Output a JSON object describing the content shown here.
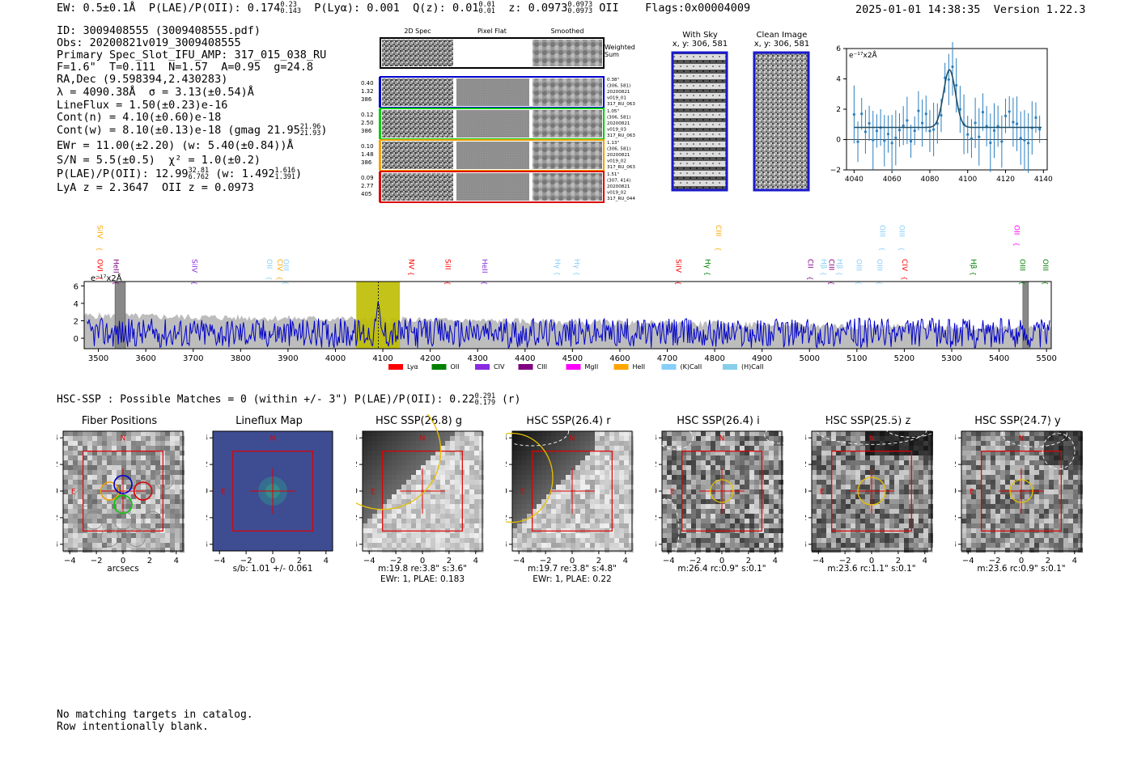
{
  "header": {
    "ew": "EW: 0.5±0.1Å",
    "plae_label": "P(LAE)/P(OII): 0.174",
    "plae_hi": "0.23",
    "plae_lo": "0.143",
    "plya": "P(Lyα): 0.001",
    "qz_label": "Q(z): 0.01",
    "qz_hi": "0.01",
    "qz_lo": "0.01",
    "z_label": "z: 0.0973",
    "z_hi": "0.0973",
    "z_lo": "0.0973",
    "z_line": "OII",
    "flags": "Flags:0x00004009",
    "timestamp": "2025-01-01 14:38:35",
    "version": "Version 1.22.3"
  },
  "info": {
    "id": "ID: 3009408555 (3009408555.pdf)",
    "obs": "Obs: 20200821v019_3009408555",
    "primary": "Primary Spec_Slot_IFU_AMP: 317_015_038_RU",
    "fparams": "F=1.6\"  T=0.111  N=1.57  A=0.95  g=24.8",
    "radec": "RA,Dec (9.598394,2.430283)",
    "lambda": "λ = 4090.38Å  σ = 3.13(±0.54)Å",
    "lineflux": "LineFlux = 1.50(±0.23)e-16",
    "contn": "Cont(n) = 4.10(±0.60)e-18",
    "contw": "Cont(w) = 8.10(±0.13)e-18 (gmag 21.95",
    "contw_hi": "21.96",
    "contw_lo": "21.93",
    "contw_end": ")",
    "ewr": "EWr = 11.00(±2.20) (w: 5.40(±0.84))Å",
    "sn": "S/N = 5.5(±0.5)  χ² = 1.0(±0.2)",
    "plae": "P(LAE)/P(OII): 12.99",
    "plae_hi": "32.81",
    "plae_lo": "6.762",
    "plae_w": "(w: 1.492",
    "plae_w_hi": "1.616",
    "plae_w_lo": "1.391",
    "plae_end": ")",
    "lyaz": "LyA z = 2.3647  OII z = 0.0973"
  },
  "cutouts": {
    "col_headers": [
      "2D Spec",
      "Pixel Flat",
      "Smoothed"
    ],
    "weighted_sum": "Weighted Sum",
    "rows": [
      {
        "left": [
          "0.40",
          "1.32",
          "386"
        ],
        "right": [
          "0.38\"",
          "(306, 581)",
          "20200821",
          "v019_01",
          "317_RU_063"
        ],
        "color": "#0000cc"
      },
      {
        "left": [
          "0.12",
          "2.50",
          "386"
        ],
        "right": [
          "1.05\"",
          "(306, 581)",
          "20200821",
          "v019_03",
          "317_RU_063"
        ],
        "color": "#00cc00"
      },
      {
        "left": [
          "0.10",
          "1.48",
          "386"
        ],
        "right": [
          "1.13\"",
          "(306, 581)",
          "20200821",
          "v019_02",
          "317_RU_063"
        ],
        "color": "#f2a000"
      },
      {
        "left": [
          "0.09",
          "2.77",
          "405"
        ],
        "right": [
          "1.51\"",
          "(307, 414)",
          "20200821",
          "v019_02",
          "317_RU_044"
        ],
        "color": "#dd0000"
      }
    ]
  },
  "sky": {
    "with_sky_title": "With Sky",
    "with_sky_xy": "x, y: 306, 581",
    "clean_title": "Clean Image",
    "clean_xy": "x, y: 306, 581"
  },
  "fit_chart": {
    "type": "scatter",
    "ylabel": "e⁻¹⁷x2Å",
    "xlim": [
      4036,
      4142
    ],
    "ylim": [
      -2,
      6
    ],
    "xticks": [
      "4040",
      "4060",
      "4080",
      "4100",
      "4120",
      "4140"
    ],
    "yticks": [
      "−2",
      "0",
      "2",
      "4",
      "6"
    ],
    "fit": {
      "center": 4090.38,
      "sigma": 3.13,
      "amp": 3.8,
      "baseline": 0.8
    }
  },
  "chart_data": {
    "type": "line",
    "title": "",
    "ylabel": "e⁻¹⁷x2Å",
    "xlim": [
      3470,
      5510
    ],
    "ylim": [
      -1.2,
      6.5
    ],
    "xticks": [
      "3500",
      "3600",
      "3700",
      "3800",
      "3900",
      "4000",
      "4100",
      "4200",
      "4300",
      "4400",
      "4500",
      "4600",
      "4700",
      "4800",
      "4900",
      "5000",
      "5100",
      "5200",
      "5300",
      "5400",
      "5500"
    ],
    "yticks": [
      "0",
      "2",
      "4",
      "6"
    ],
    "highlight_range": [
      4044,
      4136
    ],
    "line_marker": 4090.38,
    "masked": [
      [
        3535,
        3557
      ],
      [
        5450,
        5462
      ]
    ],
    "legend": [
      {
        "label": "Lyα",
        "color": "#ff0000"
      },
      {
        "label": "OII",
        "color": "#008000"
      },
      {
        "label": "CIV",
        "color": "#8a2be2"
      },
      {
        "label": "CIII",
        "color": "#800080"
      },
      {
        "label": "MgII",
        "color": "#ff00ff"
      },
      {
        "label": "HeII",
        "color": "#ffa500"
      },
      {
        "label": "(K)CaII",
        "color": "#87cefa"
      },
      {
        "label": "(H)CaII",
        "color": "#87ceeb"
      }
    ],
    "lines_low": [
      {
        "label": "OVI",
        "x": 3493,
        "color": "#ff0000"
      },
      {
        "label": "HeII",
        "x": 3527,
        "color": "#800080"
      },
      {
        "label": "SiIV",
        "x": 3693,
        "color": "#8a2be2"
      },
      {
        "label": "OII",
        "x": 3851,
        "color": "#87cefa"
      },
      {
        "label": "CIV",
        "x": 3873,
        "color": "#ffa500"
      },
      {
        "label": "OIII",
        "x": 3886,
        "color": "#87cefa"
      },
      {
        "label": "NV",
        "x": 4150,
        "color": "#ff0000"
      },
      {
        "label": "SiII",
        "x": 4227,
        "color": "#ff0000"
      },
      {
        "label": "HeII",
        "x": 4305,
        "color": "#8a2be2"
      },
      {
        "label": "Hγ",
        "x": 4458,
        "color": "#87cefa"
      },
      {
        "label": "Hγ",
        "x": 4499,
        "color": "#87cefa"
      },
      {
        "label": "SiIV",
        "x": 4714,
        "color": "#ff0000"
      },
      {
        "label": "Hγ",
        "x": 4775,
        "color": "#008000"
      },
      {
        "label": "CII",
        "x": 4992,
        "color": "#800080"
      },
      {
        "label": "Hβ",
        "x": 5020,
        "color": "#87cefa"
      },
      {
        "label": "CIII",
        "x": 5036,
        "color": "#800080"
      },
      {
        "label": "Hβ",
        "x": 5053,
        "color": "#87cefa"
      },
      {
        "label": "OIII",
        "x": 5094,
        "color": "#87cefa"
      },
      {
        "label": "OIII",
        "x": 5138,
        "color": "#87cefa"
      },
      {
        "label": "CIV",
        "x": 5191,
        "color": "#ff0000"
      },
      {
        "label": "Hβ",
        "x": 5336,
        "color": "#008000"
      },
      {
        "label": "OIII",
        "x": 5439,
        "color": "#008000"
      },
      {
        "label": "OIII",
        "x": 5488,
        "color": "#008000"
      }
    ],
    "lines_high": [
      {
        "label": "SiIV",
        "x": 3493,
        "color": "#ffa500"
      },
      {
        "label": "CIII",
        "x": 4798,
        "color": "#ffa500"
      },
      {
        "label": "OIII",
        "x": 5144,
        "color": "#87cefa"
      },
      {
        "label": "OIII",
        "x": 5185,
        "color": "#87cefa"
      },
      {
        "label": "OII",
        "x": 5427,
        "color": "#ff00ff"
      }
    ]
  },
  "hsc": {
    "header_label": "HSC-SSP : Possible Matches = 0 (within +/- 3\")  P(LAE)/P(OII): 0.22",
    "header_hi": "0.291",
    "header_lo": "0.179",
    "header_end": "(r)",
    "axis_ticks": [
      "−4",
      "−2",
      "0",
      "2",
      "4"
    ],
    "panels": [
      {
        "title": "Fiber Positions",
        "caption1": "arcsecs",
        "caption2": ""
      },
      {
        "title": "Lineflux Map",
        "caption1": "s/b: 1.01 +/- 0.061",
        "caption2": ""
      },
      {
        "title": "HSC SSP(26.8) g",
        "caption1": "m:19.8  re:3.8\"  s:3.6\"",
        "caption2": "EWr: 1, PLAE: 0.183"
      },
      {
        "title": "HSC SSP(26.4) r",
        "caption1": "m:19.7  re:3.8\"  s:4.8\"",
        "caption2": "EWr: 1, PLAE: 0.22"
      },
      {
        "title": "HSC SSP(26.4) i",
        "caption1": "m:26.4 rc:0.9\"  s:0.1\"",
        "caption2": ""
      },
      {
        "title": "HSC SSP(25.5) z",
        "caption1": "m:23.6 rc:1.1\"  s:0.1\"",
        "caption2": ""
      },
      {
        "title": "HSC SSP(24.7) y",
        "caption1": "m:23.6 rc:0.9\"  s:0.1\"",
        "caption2": ""
      }
    ],
    "compass_n": "N",
    "compass_e": "E"
  },
  "footer": {
    "line1": "No matching targets in catalog.",
    "line2": "Row intentionally blank."
  }
}
